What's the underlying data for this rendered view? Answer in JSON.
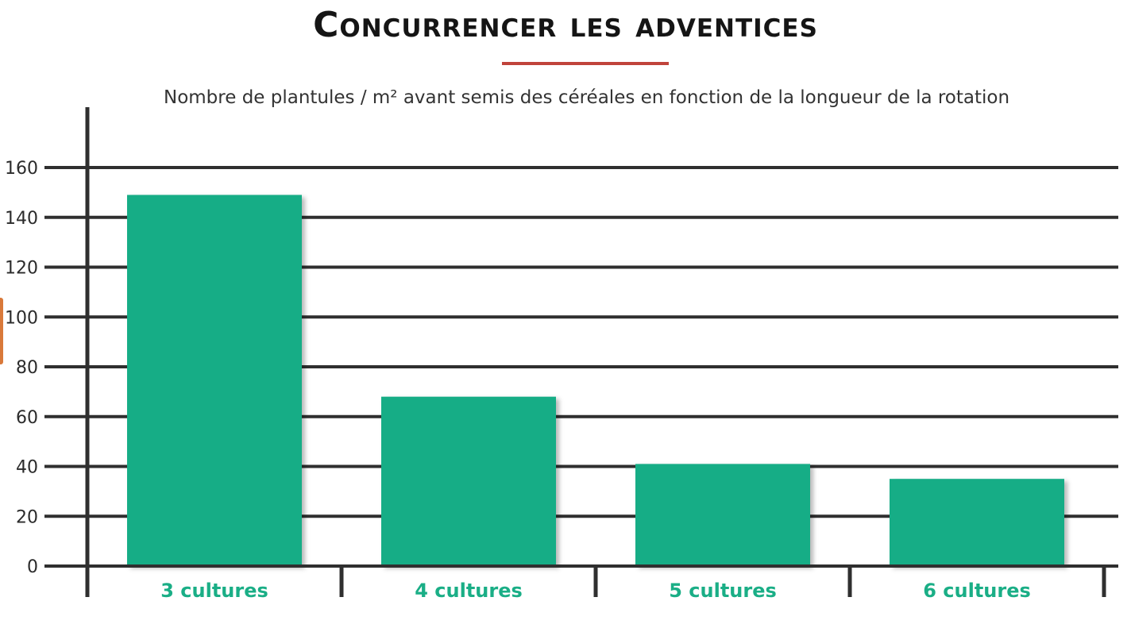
{
  "chart_data": {
    "type": "bar",
    "title": "Concurrencer les adventices",
    "subtitle": "Nombre de plantules / m² avant semis des céréales en fonction de la longueur de la rotation",
    "categories": [
      "3 cultures",
      "4 cultures",
      "5 cultures",
      "6 cultures"
    ],
    "values": [
      149,
      68,
      41,
      35
    ],
    "ylim": [
      0,
      160
    ],
    "yticks": [
      0,
      20,
      40,
      60,
      80,
      100,
      120,
      140,
      160
    ],
    "grid": true,
    "xlabel": "",
    "ylabel": ""
  },
  "colors": {
    "bar": "#17ad86",
    "grid": "#2f2f2f",
    "accent": "#c0433b",
    "category_text": "#1aae86"
  }
}
